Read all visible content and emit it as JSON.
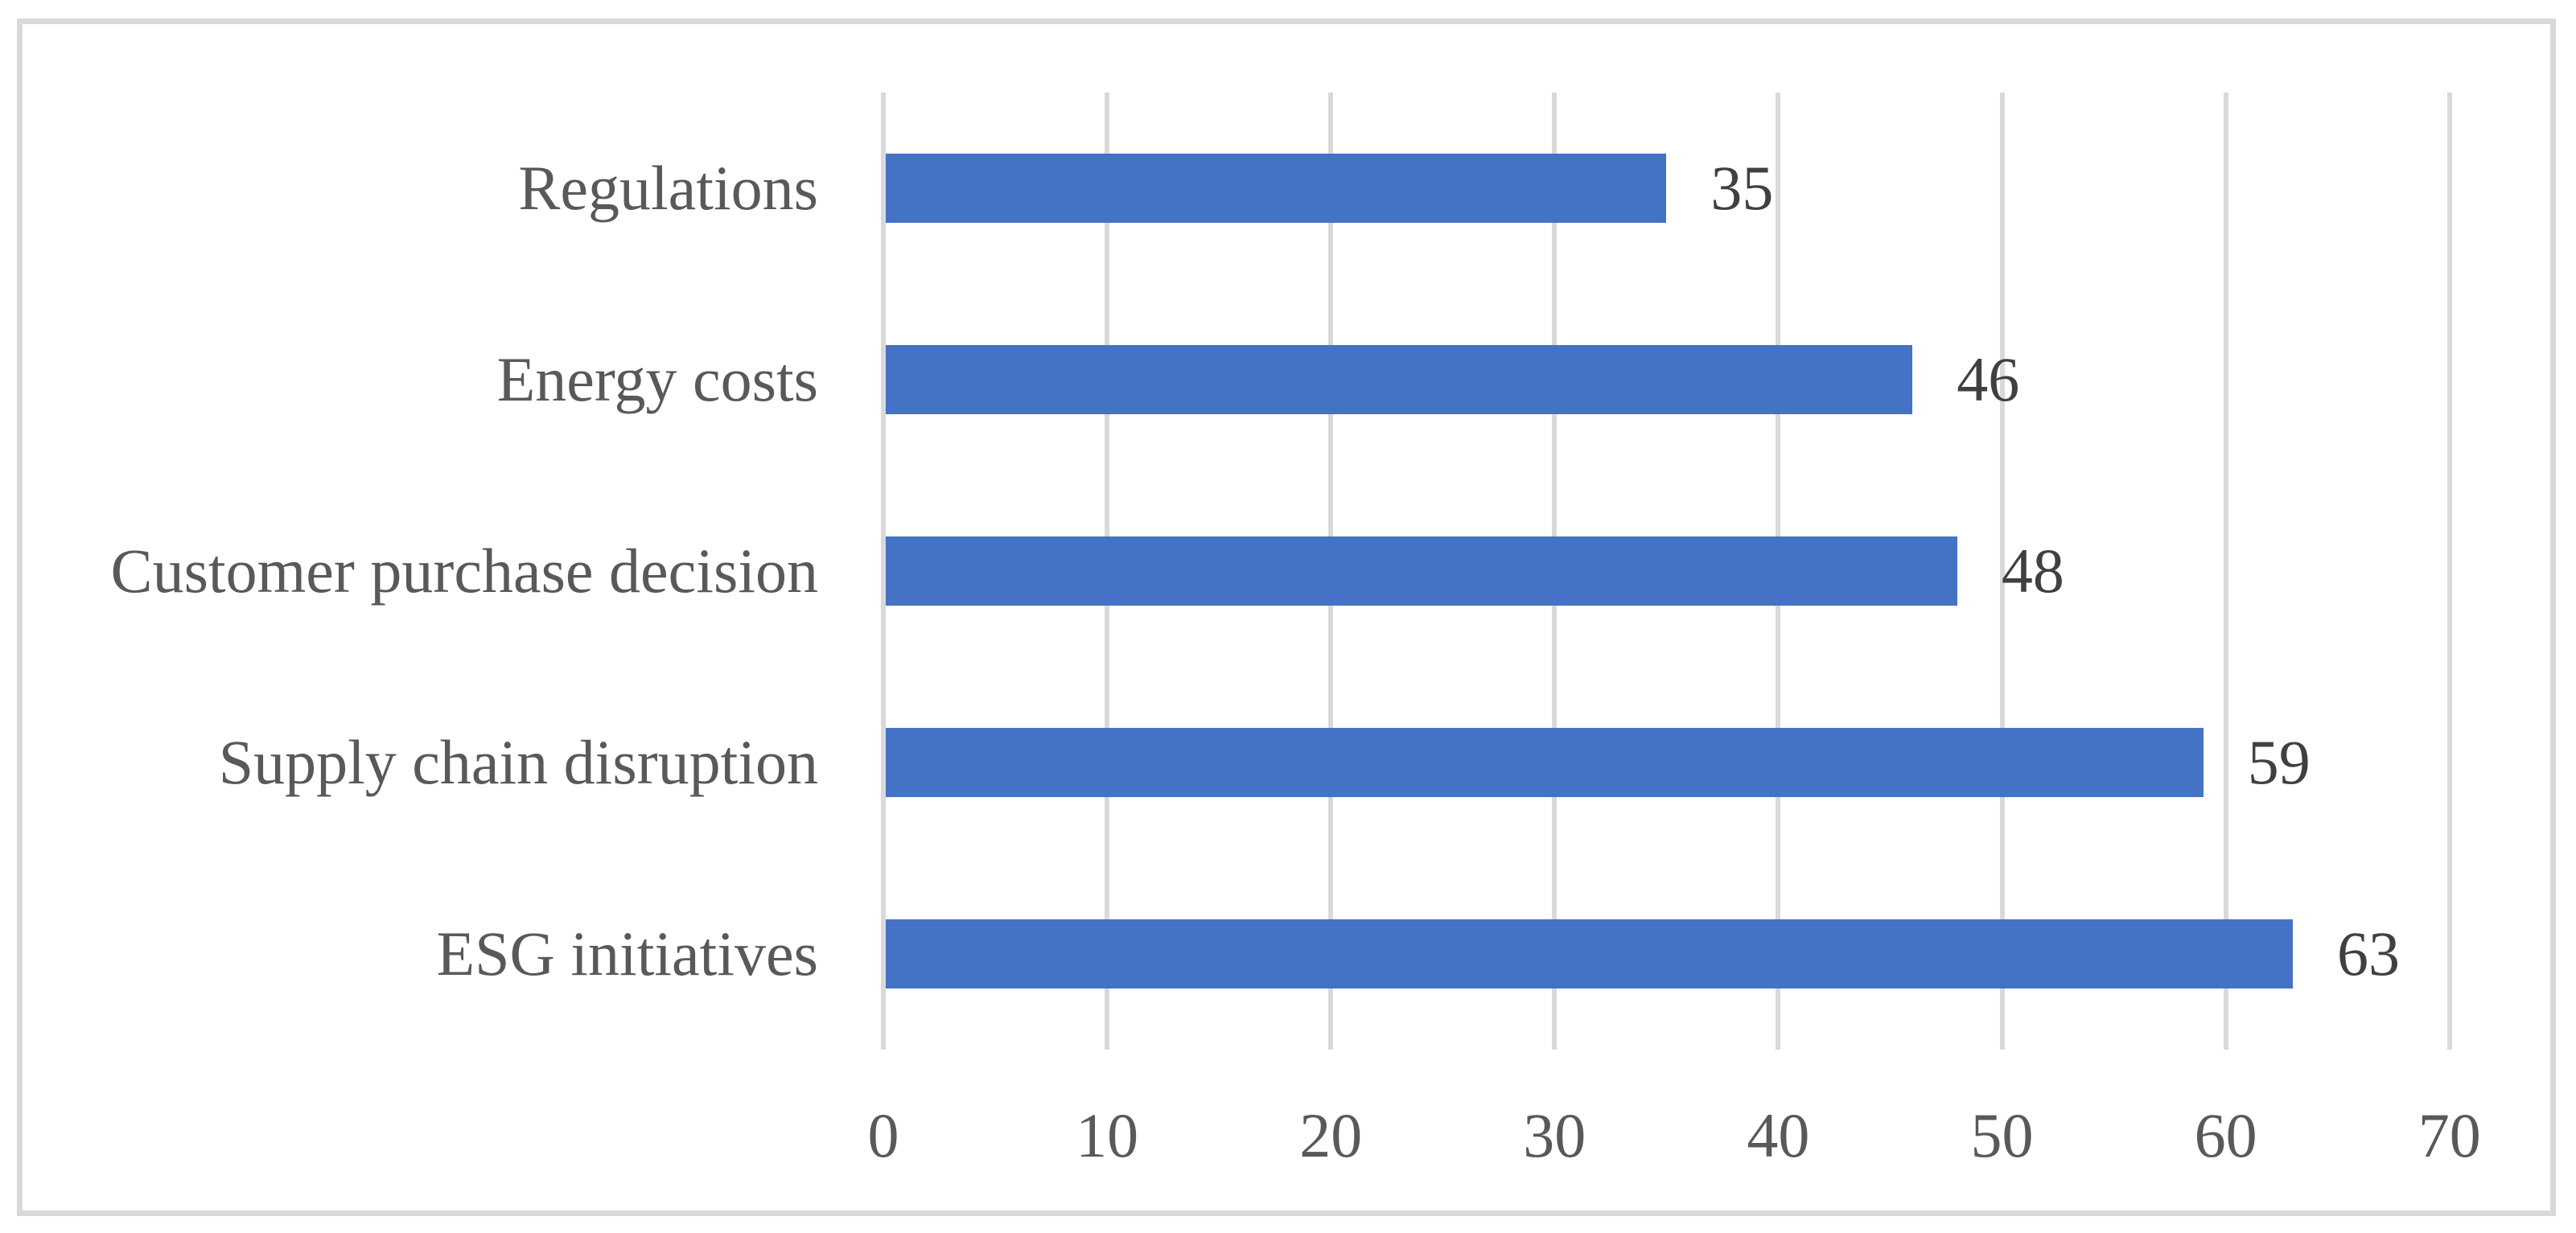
{
  "chart_data": {
    "type": "bar",
    "orientation": "horizontal",
    "title": "",
    "xlabel": "",
    "ylabel": "",
    "categories": [
      "Regulations",
      "Energy costs",
      "Customer purchase decision",
      "Supply chain disruption",
      "ESG initiatives"
    ],
    "values": [
      35,
      46,
      48,
      59,
      63
    ],
    "data_labels": [
      "35",
      "46",
      "48",
      "59",
      "63"
    ],
    "xlim": [
      0,
      70
    ],
    "x_ticks": [
      0,
      10,
      20,
      30,
      40,
      50,
      60,
      70
    ],
    "grid": "vertical-only",
    "legend": "none",
    "colors": {
      "bar": "#4472c4",
      "gridline": "#d9d9d9",
      "frame_border": "#d9d9d9",
      "category_label_text": "#595959",
      "tick_label_text": "#595959",
      "data_label_text": "#404040",
      "background": "#ffffff"
    }
  }
}
